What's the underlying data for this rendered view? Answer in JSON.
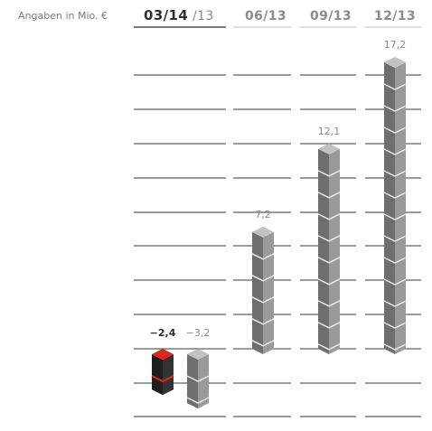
{
  "header": {
    "note": "Angaben in Mio. €",
    "current_label": "03/14",
    "compare_label": "/13"
  },
  "chart_data": {
    "type": "bar",
    "title": "",
    "unit_note": "Angaben in Mio. €",
    "categories": [
      "03/14",
      "03/13",
      "06/13",
      "09/13",
      "12/13"
    ],
    "column_headers": [
      "03/14 /13",
      "06/13",
      "09/13",
      "12/13"
    ],
    "values": [
      -2.4,
      -3.2,
      7.2,
      12.1,
      17.2
    ],
    "value_labels": [
      "−2,4",
      "−3,2",
      "7,2",
      "12,1",
      "17,2"
    ],
    "highlight_category": "03/14",
    "grid": true,
    "ylim": [
      -4,
      18
    ],
    "colors": {
      "highlight": "#e1261c",
      "highlight_dark": "#1e1e1e",
      "bar": "#6e6e6e",
      "bar_light": "#9a9a9a",
      "bar_top": "#c2c2c2",
      "grid": "#3a3a3a"
    }
  }
}
